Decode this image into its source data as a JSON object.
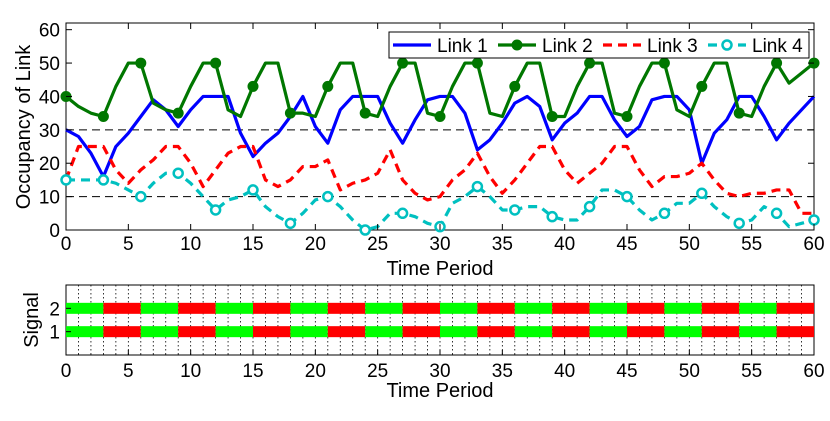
{
  "chart_data": [
    {
      "type": "line",
      "title": "",
      "xlabel": "Time Period",
      "ylabel": "Occupancy of Link",
      "xlim": [
        0,
        60
      ],
      "ylim": [
        0,
        62
      ],
      "xticks": [
        "0",
        "5",
        "10",
        "15",
        "20",
        "25",
        "30",
        "35",
        "40",
        "45",
        "50",
        "55",
        "60"
      ],
      "yticks": [
        "0",
        "10",
        "20",
        "30",
        "40",
        "50",
        "60"
      ],
      "legend_position": "top-right",
      "reference_lines": [
        10,
        30
      ],
      "series": [
        {
          "name": "Link 1",
          "color": "#0000ff",
          "style": "solid",
          "marker": "none",
          "x": [
            0,
            1,
            2,
            3,
            4,
            5,
            6,
            7,
            8,
            9,
            10,
            11,
            12,
            13,
            14,
            15,
            16,
            17,
            18,
            19,
            20,
            21,
            22,
            23,
            24,
            25,
            26,
            27,
            28,
            29,
            30,
            31,
            32,
            33,
            34,
            35,
            36,
            37,
            38,
            39,
            40,
            41,
            42,
            43,
            44,
            45,
            46,
            47,
            48,
            49,
            50,
            51,
            52,
            53,
            54,
            55,
            56,
            57,
            58,
            59,
            60
          ],
          "values": [
            30,
            28,
            23,
            16,
            25,
            29,
            34,
            39,
            36,
            31,
            36,
            40,
            40,
            40,
            29,
            22,
            26,
            29,
            34,
            40,
            31,
            26,
            36,
            40,
            40,
            40,
            32,
            26,
            33,
            39,
            40,
            40,
            35,
            24,
            27,
            32,
            38,
            40,
            37,
            27,
            32,
            35,
            40,
            40,
            33,
            28,
            31,
            39,
            40,
            40,
            36,
            20,
            29,
            33,
            40,
            40,
            34,
            27,
            32,
            36,
            40
          ]
        },
        {
          "name": "Link 2",
          "color": "#007700",
          "style": "solid",
          "marker": "filled-circle",
          "x": [
            0,
            1,
            2,
            3,
            4,
            5,
            6,
            7,
            8,
            9,
            10,
            11,
            12,
            13,
            14,
            15,
            16,
            17,
            18,
            19,
            20,
            21,
            22,
            23,
            24,
            25,
            26,
            27,
            28,
            29,
            30,
            31,
            32,
            33,
            34,
            35,
            36,
            37,
            38,
            39,
            40,
            41,
            42,
            43,
            44,
            45,
            46,
            47,
            48,
            49,
            50,
            51,
            52,
            53,
            54,
            55,
            56,
            57,
            58,
            59,
            60
          ],
          "values": [
            40,
            37,
            35,
            34,
            43,
            50,
            50,
            38,
            36,
            35,
            43,
            50,
            50,
            36,
            34,
            43,
            50,
            50,
            35,
            35,
            34,
            43,
            50,
            50,
            35,
            34,
            43,
            50,
            50,
            35,
            34,
            43,
            50,
            50,
            35,
            34,
            43,
            50,
            50,
            34,
            34,
            43,
            50,
            50,
            35,
            34,
            43,
            50,
            50,
            36,
            34,
            43,
            50,
            50,
            35,
            34,
            43,
            50,
            44,
            47,
            50
          ]
        },
        {
          "name": "Link 3",
          "color": "#ff0000",
          "style": "dashed",
          "marker": "none",
          "x": [
            0,
            1,
            2,
            3,
            4,
            5,
            6,
            7,
            8,
            9,
            10,
            11,
            12,
            13,
            14,
            15,
            16,
            17,
            18,
            19,
            20,
            21,
            22,
            23,
            24,
            25,
            26,
            27,
            28,
            29,
            30,
            31,
            32,
            33,
            34,
            35,
            36,
            37,
            38,
            39,
            40,
            41,
            42,
            43,
            44,
            45,
            46,
            47,
            48,
            49,
            50,
            51,
            52,
            53,
            54,
            55,
            56,
            57,
            58,
            59,
            60
          ],
          "values": [
            15,
            25,
            25,
            25,
            18,
            14,
            18,
            21,
            25,
            25,
            20,
            13,
            18,
            23,
            25,
            25,
            15,
            13,
            15,
            19,
            19,
            21,
            12,
            14,
            15,
            17,
            24,
            15,
            11,
            9,
            10,
            15,
            18,
            23,
            16,
            11,
            15,
            20,
            25,
            25,
            18,
            14,
            17,
            20,
            25,
            25,
            18,
            13,
            16,
            16,
            17,
            20,
            15,
            11,
            10,
            11,
            11,
            12,
            12,
            5,
            5
          ]
        },
        {
          "name": "Link 4",
          "color": "#00c0c0",
          "style": "dashed",
          "marker": "open-circle",
          "x": [
            0,
            1,
            2,
            3,
            4,
            5,
            6,
            7,
            8,
            9,
            10,
            11,
            12,
            13,
            14,
            15,
            16,
            17,
            18,
            19,
            20,
            21,
            22,
            23,
            24,
            25,
            26,
            27,
            28,
            29,
            30,
            31,
            32,
            33,
            34,
            35,
            36,
            37,
            38,
            39,
            40,
            41,
            42,
            43,
            44,
            45,
            46,
            47,
            48,
            49,
            50,
            51,
            52,
            53,
            54,
            55,
            56,
            57,
            58,
            59,
            60
          ],
          "values": [
            15,
            15,
            15,
            15,
            14,
            12,
            10,
            14,
            17,
            17,
            14,
            10,
            6,
            9,
            10,
            12,
            7,
            4,
            2,
            5,
            9,
            10,
            7,
            3,
            0,
            1,
            5,
            5,
            4,
            2,
            1,
            8,
            10,
            13,
            10,
            6,
            6,
            7,
            7,
            4,
            3,
            3,
            7,
            12,
            12,
            10,
            6,
            3,
            5,
            8,
            8,
            11,
            7,
            4,
            2,
            3,
            7,
            5,
            1,
            2,
            3
          ]
        }
      ]
    },
    {
      "type": "heatmap",
      "title": "",
      "xlabel": "Time Period",
      "ylabel": "Signal",
      "xlim": [
        0,
        60
      ],
      "xticks": [
        "0",
        "5",
        "10",
        "15",
        "20",
        "25",
        "30",
        "35",
        "40",
        "45",
        "50",
        "55",
        "60"
      ],
      "yticks": [
        "1",
        "2"
      ],
      "colors": {
        "green": "#00ff00",
        "red": "#ff0000"
      },
      "rows": [
        {
          "name": "2",
          "segments": [
            {
              "start": 0,
              "end": 3,
              "state": "green"
            },
            {
              "start": 3,
              "end": 6,
              "state": "red"
            },
            {
              "start": 6,
              "end": 9,
              "state": "green"
            },
            {
              "start": 9,
              "end": 12,
              "state": "red"
            },
            {
              "start": 12,
              "end": 15,
              "state": "green"
            },
            {
              "start": 15,
              "end": 18,
              "state": "red"
            },
            {
              "start": 18,
              "end": 21,
              "state": "green"
            },
            {
              "start": 21,
              "end": 24,
              "state": "red"
            },
            {
              "start": 24,
              "end": 27,
              "state": "green"
            },
            {
              "start": 27,
              "end": 30,
              "state": "red"
            },
            {
              "start": 30,
              "end": 33,
              "state": "green"
            },
            {
              "start": 33,
              "end": 36,
              "state": "red"
            },
            {
              "start": 36,
              "end": 39,
              "state": "green"
            },
            {
              "start": 39,
              "end": 42,
              "state": "red"
            },
            {
              "start": 42,
              "end": 45,
              "state": "green"
            },
            {
              "start": 45,
              "end": 48,
              "state": "red"
            },
            {
              "start": 48,
              "end": 51,
              "state": "green"
            },
            {
              "start": 51,
              "end": 54,
              "state": "red"
            },
            {
              "start": 54,
              "end": 57,
              "state": "green"
            },
            {
              "start": 57,
              "end": 60,
              "state": "red"
            }
          ]
        },
        {
          "name": "1",
          "segments": [
            {
              "start": 0,
              "end": 3,
              "state": "green"
            },
            {
              "start": 3,
              "end": 6,
              "state": "red"
            },
            {
              "start": 6,
              "end": 9,
              "state": "green"
            },
            {
              "start": 9,
              "end": 12,
              "state": "red"
            },
            {
              "start": 12,
              "end": 15,
              "state": "green"
            },
            {
              "start": 15,
              "end": 18,
              "state": "red"
            },
            {
              "start": 18,
              "end": 21,
              "state": "green"
            },
            {
              "start": 21,
              "end": 24,
              "state": "red"
            },
            {
              "start": 24,
              "end": 27,
              "state": "green"
            },
            {
              "start": 27,
              "end": 30,
              "state": "red"
            },
            {
              "start": 30,
              "end": 33,
              "state": "green"
            },
            {
              "start": 33,
              "end": 36,
              "state": "red"
            },
            {
              "start": 36,
              "end": 39,
              "state": "green"
            },
            {
              "start": 39,
              "end": 42,
              "state": "red"
            },
            {
              "start": 42,
              "end": 45,
              "state": "green"
            },
            {
              "start": 45,
              "end": 48,
              "state": "red"
            },
            {
              "start": 48,
              "end": 51,
              "state": "green"
            },
            {
              "start": 51,
              "end": 54,
              "state": "red"
            },
            {
              "start": 54,
              "end": 57,
              "state": "green"
            },
            {
              "start": 57,
              "end": 60,
              "state": "red"
            }
          ]
        }
      ]
    }
  ]
}
